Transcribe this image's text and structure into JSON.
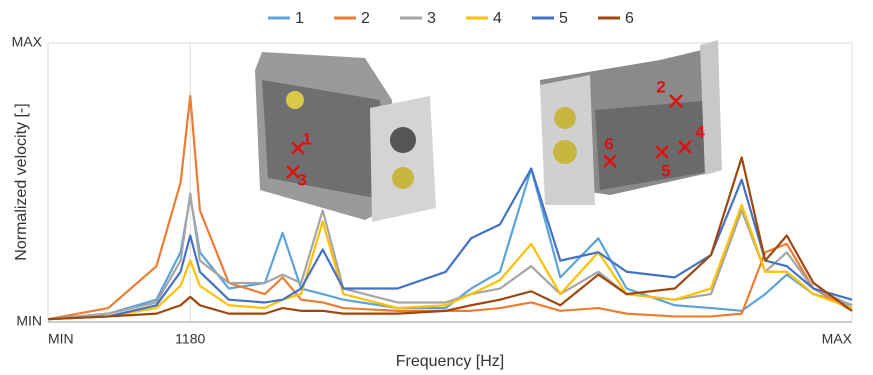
{
  "chart_data": {
    "type": "line",
    "y_label": "Normalized velocity [-]",
    "x_label": "Frequency [Hz]",
    "x": [
      0,
      500,
      900,
      1100,
      1180,
      1260,
      1500,
      1800,
      1946,
      2100,
      2279,
      2450,
      2900,
      3300,
      3510,
      3750,
      4009,
      4250,
      4566,
      4800,
      5200,
      5500,
      5755,
      5950,
      6129,
      6350,
      6670
    ],
    "xlim": [
      0,
      6670
    ],
    "xticks": [
      {
        "value": 0,
        "label": "MIN"
      },
      1180,
      {
        "value": 6670,
        "label": "MAX"
      }
    ],
    "ylim": [
      0,
      100
    ],
    "yticks": [
      {
        "value": 0,
        "label": "MIN"
      },
      {
        "value": 100,
        "label": "MAX"
      }
    ],
    "grid": true,
    "legend": "top",
    "series": [
      {
        "name": "1",
        "color": "#5ba3d9",
        "values": [
          1,
          3,
          8,
          25,
          45,
          25,
          12,
          14,
          32,
          12,
          10,
          8,
          5,
          5,
          12,
          18,
          55,
          16,
          30,
          12,
          6,
          5,
          4,
          10,
          17,
          10,
          6
        ]
      },
      {
        "name": "2",
        "color": "#ed7d31",
        "values": [
          1,
          5,
          20,
          50,
          81,
          40,
          14,
          10,
          16,
          8,
          7,
          5,
          4,
          4,
          4,
          5,
          7,
          4,
          5,
          3,
          2,
          2,
          3,
          25,
          28,
          12,
          4
        ]
      },
      {
        "name": "3",
        "color": "#a5a5a5",
        "values": [
          1,
          3,
          7,
          22,
          46,
          22,
          14,
          14,
          17,
          14,
          40,
          12,
          7,
          7,
          10,
          12,
          20,
          10,
          18,
          10,
          8,
          10,
          40,
          18,
          25,
          12,
          6
        ]
      },
      {
        "name": "4",
        "color": "#ffc000",
        "values": [
          1,
          2,
          5,
          13,
          22,
          13,
          6,
          5,
          8,
          10,
          36,
          10,
          5,
          6,
          10,
          15,
          28,
          10,
          25,
          10,
          8,
          12,
          42,
          18,
          18,
          10,
          5
        ]
      },
      {
        "name": "5",
        "color": "#4472c4",
        "values": [
          1,
          2,
          6,
          18,
          31,
          18,
          8,
          7,
          8,
          12,
          26,
          12,
          12,
          18,
          30,
          35,
          55,
          22,
          25,
          18,
          16,
          24,
          51,
          22,
          20,
          12,
          8
        ]
      },
      {
        "name": "6",
        "color": "#9e480e",
        "values": [
          1,
          2,
          3,
          6,
          9,
          6,
          3,
          3,
          5,
          4,
          4,
          3,
          3,
          4,
          6,
          8,
          11,
          6,
          17,
          10,
          12,
          24,
          59,
          22,
          31,
          14,
          4
        ]
      }
    ],
    "annotations": [
      "1",
      "3",
      "2",
      "4",
      "5",
      "6"
    ]
  }
}
